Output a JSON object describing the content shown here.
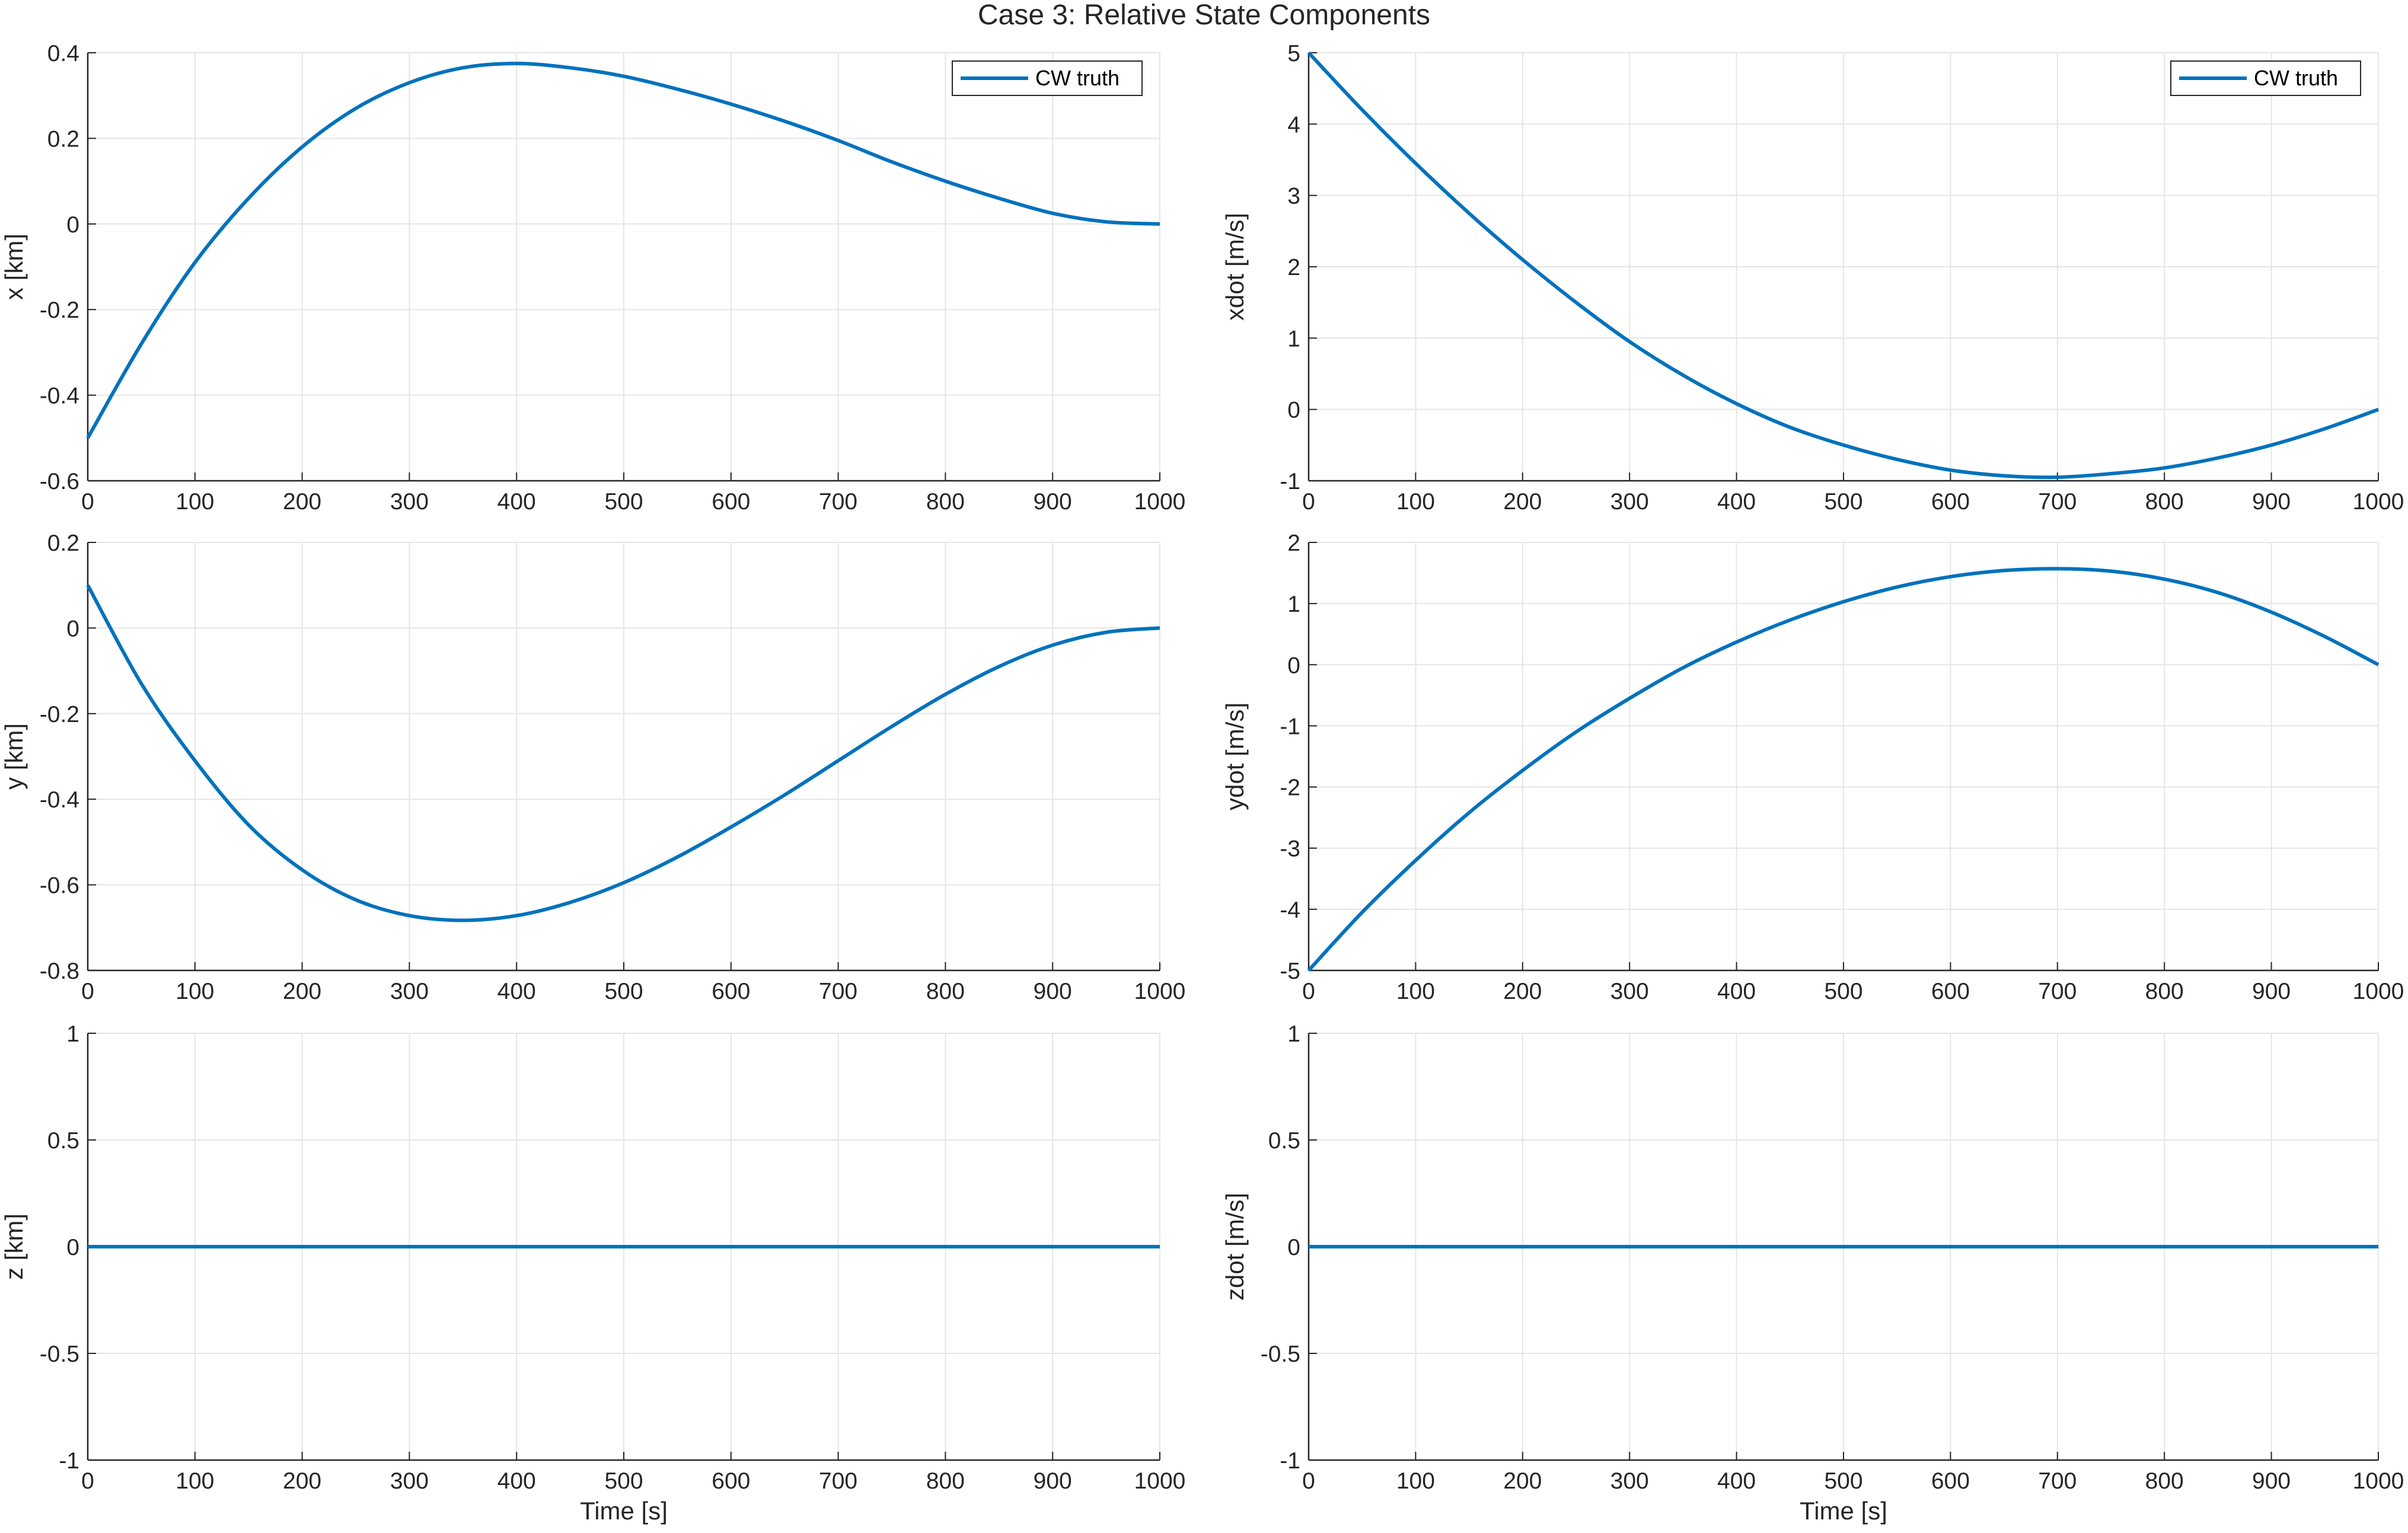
{
  "figure_title": "Case 3: Relative State Components",
  "colors": {
    "series": "#0072BD",
    "grid": "#e5e5e5",
    "axis": "#262626"
  },
  "chart_data": [
    {
      "type": "line",
      "title": "",
      "xlabel": "",
      "ylabel": "x [km]",
      "xlim": [
        0,
        1000
      ],
      "ylim": [
        -0.6,
        0.4
      ],
      "xticks": [
        0,
        100,
        200,
        300,
        400,
        500,
        600,
        700,
        800,
        900,
        1000
      ],
      "xtick_labels": [
        "0",
        "100",
        "200",
        "300",
        "400",
        "500",
        "600",
        "700",
        "800",
        "900",
        "1000"
      ],
      "yticks": [
        -0.6,
        -0.4,
        -0.2,
        0,
        0.2,
        0.4
      ],
      "ytick_labels": [
        "-0.6",
        "-0.4",
        "-0.2",
        "0",
        "0.2",
        "0.4"
      ],
      "grid": true,
      "legend": "top-right",
      "series": [
        {
          "name": "CW truth",
          "x": [
            0,
            50,
            100,
            150,
            200,
            250,
            300,
            350,
            400,
            450,
            500,
            550,
            600,
            650,
            700,
            750,
            800,
            850,
            900,
            950,
            1000
          ],
          "y": [
            -0.5,
            -0.28,
            -0.09,
            0.06,
            0.18,
            0.27,
            0.33,
            0.365,
            0.375,
            0.365,
            0.345,
            0.315,
            0.28,
            0.24,
            0.195,
            0.145,
            0.1,
            0.06,
            0.025,
            0.005,
            0
          ]
        }
      ]
    },
    {
      "type": "line",
      "title": "",
      "xlabel": "",
      "ylabel": "xdot [m/s]",
      "xlim": [
        0,
        1000
      ],
      "ylim": [
        -1,
        5
      ],
      "xticks": [
        0,
        100,
        200,
        300,
        400,
        500,
        600,
        700,
        800,
        900,
        1000
      ],
      "xtick_labels": [
        "0",
        "100",
        "200",
        "300",
        "400",
        "500",
        "600",
        "700",
        "800",
        "900",
        "1000"
      ],
      "yticks": [
        -1,
        0,
        1,
        2,
        3,
        4,
        5
      ],
      "ytick_labels": [
        "-1",
        "0",
        "1",
        "2",
        "3",
        "4",
        "5"
      ],
      "grid": true,
      "legend": "top-right",
      "series": [
        {
          "name": "CW truth",
          "x": [
            0,
            50,
            100,
            150,
            200,
            250,
            300,
            350,
            400,
            450,
            500,
            550,
            600,
            650,
            700,
            750,
            800,
            850,
            900,
            950,
            1000
          ],
          "y": [
            5,
            4.2,
            3.45,
            2.75,
            2.1,
            1.5,
            0.95,
            0.48,
            0.08,
            -0.25,
            -0.5,
            -0.7,
            -0.85,
            -0.93,
            -0.95,
            -0.9,
            -0.82,
            -0.68,
            -0.5,
            -0.27,
            0
          ]
        }
      ]
    },
    {
      "type": "line",
      "title": "",
      "xlabel": "",
      "ylabel": "y [km]",
      "xlim": [
        0,
        1000
      ],
      "ylim": [
        -0.8,
        0.2
      ],
      "xticks": [
        0,
        100,
        200,
        300,
        400,
        500,
        600,
        700,
        800,
        900,
        1000
      ],
      "xtick_labels": [
        "0",
        "100",
        "200",
        "300",
        "400",
        "500",
        "600",
        "700",
        "800",
        "900",
        "1000"
      ],
      "yticks": [
        -0.8,
        -0.6,
        -0.4,
        -0.2,
        0,
        0.2
      ],
      "ytick_labels": [
        "-0.8",
        "-0.6",
        "-0.4",
        "-0.2",
        "0",
        "0.2"
      ],
      "grid": true,
      "legend": null,
      "series": [
        {
          "name": "CW truth",
          "x": [
            0,
            50,
            100,
            150,
            200,
            250,
            300,
            350,
            400,
            450,
            500,
            550,
            600,
            650,
            700,
            750,
            800,
            850,
            900,
            950,
            1000
          ],
          "y": [
            0.1,
            -0.13,
            -0.31,
            -0.46,
            -0.565,
            -0.635,
            -0.672,
            -0.683,
            -0.672,
            -0.641,
            -0.595,
            -0.535,
            -0.465,
            -0.39,
            -0.31,
            -0.23,
            -0.155,
            -0.09,
            -0.04,
            -0.01,
            0
          ]
        }
      ]
    },
    {
      "type": "line",
      "title": "",
      "xlabel": "",
      "ylabel": "ydot [m/s]",
      "xlim": [
        0,
        1000
      ],
      "ylim": [
        -5,
        2
      ],
      "xticks": [
        0,
        100,
        200,
        300,
        400,
        500,
        600,
        700,
        800,
        900,
        1000
      ],
      "xtick_labels": [
        "0",
        "100",
        "200",
        "300",
        "400",
        "500",
        "600",
        "700",
        "800",
        "900",
        "1000"
      ],
      "yticks": [
        -5,
        -4,
        -3,
        -2,
        -1,
        0,
        1,
        2
      ],
      "ytick_labels": [
        "-5",
        "-4",
        "-3",
        "-2",
        "-1",
        "0",
        "1",
        "2"
      ],
      "grid": true,
      "legend": null,
      "series": [
        {
          "name": "CW truth",
          "x": [
            0,
            50,
            100,
            150,
            200,
            250,
            300,
            350,
            400,
            450,
            500,
            550,
            600,
            650,
            700,
            750,
            800,
            850,
            900,
            950,
            1000
          ],
          "y": [
            -5,
            -4.05,
            -3.2,
            -2.42,
            -1.73,
            -1.1,
            -0.55,
            -0.05,
            0.37,
            0.73,
            1.03,
            1.27,
            1.44,
            1.54,
            1.57,
            1.53,
            1.4,
            1.18,
            0.86,
            0.46,
            0
          ]
        }
      ]
    },
    {
      "type": "line",
      "title": "",
      "xlabel": "Time [s]",
      "ylabel": "z [km]",
      "xlim": [
        0,
        1000
      ],
      "ylim": [
        -1,
        1
      ],
      "xticks": [
        0,
        100,
        200,
        300,
        400,
        500,
        600,
        700,
        800,
        900,
        1000
      ],
      "xtick_labels": [
        "0",
        "100",
        "200",
        "300",
        "400",
        "500",
        "600",
        "700",
        "800",
        "900",
        "1000"
      ],
      "yticks": [
        -1,
        -0.5,
        0,
        0.5,
        1
      ],
      "ytick_labels": [
        "-1",
        "-0.5",
        "0",
        "0.5",
        "1"
      ],
      "grid": true,
      "legend": null,
      "series": [
        {
          "name": "CW truth",
          "x": [
            0,
            1000
          ],
          "y": [
            0,
            0
          ]
        }
      ]
    },
    {
      "type": "line",
      "title": "",
      "xlabel": "Time [s]",
      "ylabel": "zdot [m/s]",
      "xlim": [
        0,
        1000
      ],
      "ylim": [
        -1,
        1
      ],
      "xticks": [
        0,
        100,
        200,
        300,
        400,
        500,
        600,
        700,
        800,
        900,
        1000
      ],
      "xtick_labels": [
        "0",
        "100",
        "200",
        "300",
        "400",
        "500",
        "600",
        "700",
        "800",
        "900",
        "1000"
      ],
      "yticks": [
        -1,
        -0.5,
        0,
        0.5,
        1
      ],
      "ytick_labels": [
        "-1",
        "-0.5",
        "0",
        "0.5",
        "1"
      ],
      "grid": true,
      "legend": null,
      "series": [
        {
          "name": "CW truth",
          "x": [
            0,
            1000
          ],
          "y": [
            0,
            0
          ]
        }
      ]
    }
  ]
}
